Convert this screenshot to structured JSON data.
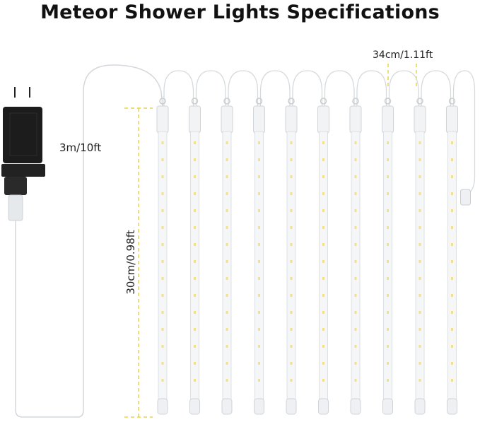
{
  "title": "Meteor Shower Lights Specifications",
  "labels": {
    "cable_length": "3m/10ft",
    "tube_spacing": "34cm/1.11ft",
    "tube_length": "30cm/0.98ft"
  },
  "colors": {
    "dimension_line": "#e8d44a",
    "led": "#f2e08a",
    "adapter": "#1c1c1c"
  }
}
